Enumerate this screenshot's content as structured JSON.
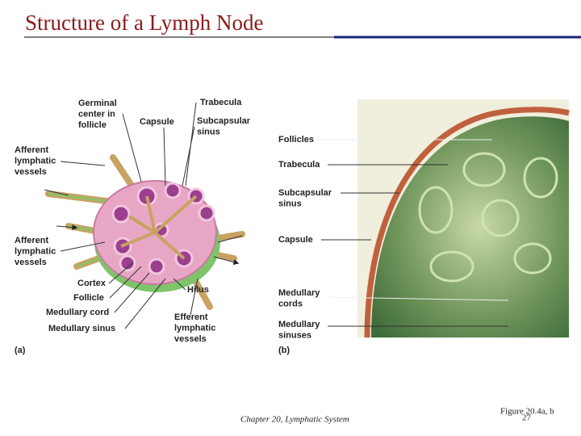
{
  "header": {
    "title": "Structure of a Lymph Node"
  },
  "panel_a": {
    "tag": "(a)",
    "labels": [
      {
        "lines": [
          "Germinal",
          "center in",
          "follicle"
        ]
      },
      {
        "lines": [
          "Capsule"
        ]
      },
      {
        "lines": [
          "Trabecula"
        ]
      },
      {
        "lines": [
          "Subcapsular",
          "sinus"
        ]
      },
      {
        "lines": [
          "Afferent",
          "lymphatic",
          "vessels"
        ]
      },
      {
        "lines": [
          "Afferent",
          "lymphatic",
          "vessels"
        ]
      },
      {
        "lines": [
          "Cortex"
        ]
      },
      {
        "lines": [
          "Follicle"
        ]
      },
      {
        "lines": [
          "Medullary cord"
        ]
      },
      {
        "lines": [
          "Medullary sinus"
        ]
      },
      {
        "lines": [
          "Hilus"
        ]
      },
      {
        "lines": [
          "Efferent",
          "lymphatic",
          "vessels"
        ]
      }
    ]
  },
  "panel_b": {
    "tag": "(b)",
    "labels": [
      {
        "lines": [
          "Follicles"
        ]
      },
      {
        "lines": [
          "Trabecula"
        ]
      },
      {
        "lines": [
          "Subcapsular",
          "sinus"
        ]
      },
      {
        "lines": [
          "Capsule"
        ]
      },
      {
        "lines": [
          "Medullary",
          "cords"
        ]
      },
      {
        "lines": [
          "Medullary",
          "sinuses"
        ]
      }
    ]
  },
  "footer": {
    "chapter": "Chapter 20, Lymphatic System",
    "figure": "Figure 20.4a, b",
    "page": "27"
  }
}
